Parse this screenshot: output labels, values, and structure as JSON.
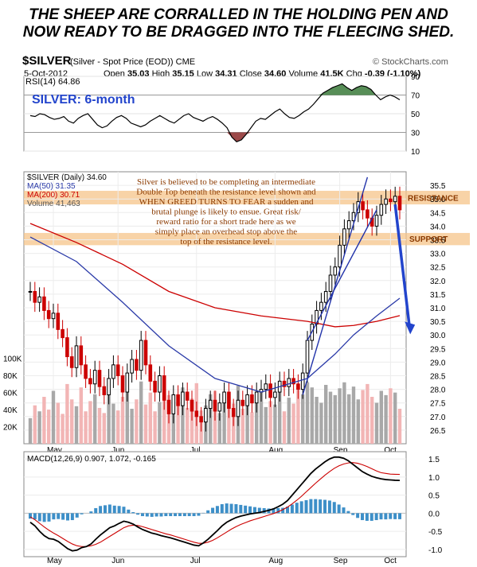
{
  "headline": {
    "line1": "THE SHEEP ARE CORRALLED IN THE HOLDING PEN AND",
    "line2": "NOW READY TO BE DRAGGED INTO THE FLEECING SHED."
  },
  "header": {
    "symbol": "$SILVER",
    "description": "(Silver - Spot Price (EOD))  CME",
    "brand": "© StockCharts.com",
    "date": "5-Oct-2012",
    "open_label": "Open",
    "open": "35.03",
    "high_label": "High",
    "high": "35.15",
    "low_label": "Low",
    "low": "34.31",
    "close_label": "Close",
    "close": "34.60",
    "volume_label": "Volume",
    "volume": "41.5K",
    "chg_label": "Chg",
    "chg": "-0.39 (-1.10%)"
  },
  "colors": {
    "up": "#000000",
    "down": "#cc0000",
    "ma50": "#2a3aa8",
    "ma200": "#cc0000",
    "annot": "#8b3a00",
    "arrow": "#2244cc",
    "resist": "#f5c48a",
    "rsi_fill_hi": "#3a7a3a",
    "rsi_fill_lo": "#8b2a2a",
    "macd_hist": "#3d8fc8"
  },
  "chart_data": [
    {
      "type": "line",
      "title": "RSI(14) 64.86",
      "annotation": "SILVER: 6-month",
      "ylim": [
        10,
        90
      ],
      "y_ticks": [
        10,
        30,
        50,
        70,
        90
      ],
      "series": [
        {
          "name": "RSI(14)",
          "values": [
            48,
            47,
            50,
            49,
            46,
            44,
            45,
            47,
            42,
            40,
            45,
            48,
            50,
            44,
            38,
            35,
            37,
            42,
            46,
            48,
            45,
            40,
            38,
            36,
            38,
            42,
            45,
            48,
            45,
            42,
            40,
            44,
            48,
            50,
            46,
            44,
            42,
            45,
            47,
            44,
            40,
            35,
            25,
            20,
            22,
            28,
            35,
            42,
            45,
            44,
            48,
            52,
            55,
            50,
            46,
            45,
            48,
            52,
            55,
            60,
            66,
            72,
            75,
            78,
            80,
            82,
            78,
            75,
            78,
            80,
            79,
            76,
            70,
            65,
            68,
            70,
            68,
            64.86
          ]
        }
      ]
    },
    {
      "type": "candlestick",
      "title": "$SILVER (Daily) 34.60",
      "xlabel": "",
      "ylabel": "",
      "x_ticks": [
        "May",
        "Jun",
        "Jul",
        "Aug",
        "Sep",
        "Oct"
      ],
      "ylim": [
        26,
        36
      ],
      "y_ticks": [
        26.5,
        27.0,
        27.5,
        28.0,
        28.5,
        29.0,
        29.5,
        30.0,
        30.5,
        31.0,
        31.5,
        32.0,
        32.5,
        33.0,
        33.5,
        34.0,
        34.5,
        35.0,
        35.5
      ],
      "legend": [
        "$SILVER (Daily) 34.60",
        "MA(50) 31.35",
        "MA(200) 30.71",
        "Volume 41,463"
      ],
      "close": [
        31.6,
        31.2,
        31.4,
        30.9,
        30.6,
        30.8,
        30.2,
        29.9,
        29.2,
        28.8,
        29.6,
        28.9,
        28.4,
        28.2,
        28.7,
        28.1,
        27.8,
        28.4,
        28.9,
        28.5,
        27.9,
        28.6,
        29.1,
        28.7,
        29.8,
        28.9,
        28.3,
        27.9,
        28.5,
        27.6,
        27.1,
        27.8,
        27.4,
        27.9,
        27.6,
        27.2,
        27.0,
        26.8,
        27.3,
        27.6,
        27.2,
        27.5,
        27.9,
        27.3,
        27.0,
        27.6,
        27.4,
        27.8,
        27.5,
        27.9,
        28.0,
        28.2,
        27.7,
        27.9,
        28.3,
        28.1,
        28.4,
        28.2,
        28.0,
        28.6,
        29.8,
        30.4,
        30.9,
        31.2,
        31.6,
        32.2,
        32.5,
        33.3,
        33.9,
        34.2,
        34.5,
        34.9,
        34.6,
        34.3,
        34.0,
        34.4,
        34.8,
        35.0,
        34.9,
        35.1,
        34.6
      ],
      "ma50": {
        "name": "MA(50)",
        "x": [
          0,
          10,
          20,
          30,
          40,
          50,
          60,
          66,
          70,
          75,
          80
        ],
        "values": [
          33.6,
          32.7,
          31.2,
          29.6,
          28.4,
          27.9,
          28.4,
          29.3,
          30.0,
          30.7,
          31.35
        ]
      },
      "ma200": {
        "name": "MA(200)",
        "x": [
          0,
          10,
          20,
          30,
          40,
          50,
          60,
          66,
          70,
          75,
          80
        ],
        "values": [
          34.1,
          33.4,
          32.6,
          31.6,
          31.0,
          30.7,
          30.5,
          30.3,
          30.35,
          30.5,
          30.71
        ]
      },
      "volume": {
        "name": "Volume",
        "ticks": [
          "20K",
          "40K",
          "60K",
          "80K",
          "100K"
        ],
        "values": [
          30,
          45,
          38,
          55,
          40,
          62,
          48,
          35,
          70,
          52,
          44,
          66,
          38,
          50,
          58,
          42,
          36,
          61,
          47,
          39,
          55,
          68,
          41,
          52,
          73,
          46,
          60,
          38,
          49,
          64,
          57,
          35,
          48,
          66,
          42,
          53,
          71,
          39,
          45,
          58,
          62,
          36,
          49,
          55,
          47,
          68,
          41,
          52,
          37,
          59,
          64,
          43,
          50,
          46,
          61,
          38,
          54,
          47,
          63,
          58,
          72,
          66,
          55,
          48,
          69,
          61,
          57,
          65,
          72,
          58,
          67,
          52,
          63,
          70,
          55,
          48,
          62,
          57,
          65,
          60,
          41
        ]
      },
      "annotations": {
        "text": "Silver is believed to be completing an intermediate Double Top beneath the resistance level shown and WHEN GREED TURNS TO FEAR a sudden and brutal plunge is likely to ensue. Great risk/ reward ratio for a short trade here as we simply place an overhead stop above the top of the resistance level.",
        "resistance": "RESISTANCE",
        "support": "SUPPORT"
      }
    },
    {
      "type": "line",
      "title": "MACD(12,26,9) 0.907, 1.072, -0.165",
      "x_ticks": [
        "May",
        "Jun",
        "Jul",
        "Aug",
        "Sep",
        "Oct"
      ],
      "ylim": [
        -1.2,
        1.7
      ],
      "y_ticks": [
        -1.0,
        -0.5,
        0.0,
        0.5,
        1.0,
        1.5
      ],
      "series": [
        {
          "name": "MACD(12,26,9)",
          "values": [
            -0.25,
            -0.35,
            -0.5,
            -0.62,
            -0.7,
            -0.72,
            -0.78,
            -0.88,
            -0.98,
            -1.04,
            -1.02,
            -0.95,
            -0.92,
            -0.85,
            -0.72,
            -0.6,
            -0.5,
            -0.4,
            -0.35,
            -0.28,
            -0.22,
            -0.25,
            -0.3,
            -0.38,
            -0.45,
            -0.5,
            -0.55,
            -0.58,
            -0.62,
            -0.65,
            -0.68,
            -0.72,
            -0.76,
            -0.8,
            -0.84,
            -0.88,
            -0.9,
            -0.82,
            -0.72,
            -0.6,
            -0.48,
            -0.35,
            -0.25,
            -0.18,
            -0.12,
            -0.08,
            -0.05,
            -0.02,
            0.0,
            0.02,
            0.05,
            0.08,
            0.12,
            0.18,
            0.25,
            0.35,
            0.5,
            0.65,
            0.8,
            0.95,
            1.1,
            1.22,
            1.32,
            1.42,
            1.5,
            1.55,
            1.55,
            1.52,
            1.45,
            1.35,
            1.25,
            1.15,
            1.08,
            1.02,
            0.98,
            0.95,
            0.93,
            0.92,
            0.91,
            0.907
          ]
        },
        {
          "name": "signal",
          "values": [
            -0.1,
            -0.18,
            -0.28,
            -0.38,
            -0.47,
            -0.55,
            -0.62,
            -0.7,
            -0.78,
            -0.85,
            -0.9,
            -0.92,
            -0.92,
            -0.9,
            -0.86,
            -0.8,
            -0.72,
            -0.64,
            -0.56,
            -0.48,
            -0.4,
            -0.35,
            -0.33,
            -0.34,
            -0.37,
            -0.41,
            -0.45,
            -0.49,
            -0.53,
            -0.57,
            -0.6,
            -0.64,
            -0.68,
            -0.72,
            -0.76,
            -0.8,
            -0.83,
            -0.83,
            -0.8,
            -0.75,
            -0.68,
            -0.6,
            -0.52,
            -0.44,
            -0.37,
            -0.31,
            -0.26,
            -0.21,
            -0.17,
            -0.13,
            -0.09,
            -0.05,
            -0.01,
            0.04,
            0.1,
            0.17,
            0.26,
            0.36,
            0.47,
            0.59,
            0.71,
            0.83,
            0.94,
            1.05,
            1.15,
            1.24,
            1.31,
            1.36,
            1.39,
            1.4,
            1.38,
            1.34,
            1.29,
            1.23,
            1.17,
            1.12,
            1.1,
            1.08,
            1.075,
            1.072
          ]
        }
      ]
    }
  ]
}
